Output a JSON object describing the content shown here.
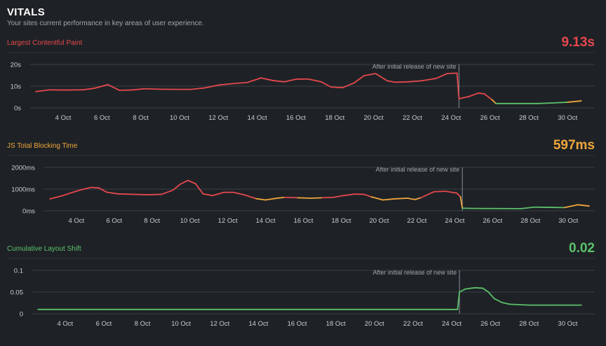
{
  "header": {
    "title": "VITALS",
    "subtitle": "Your sites current performance in key areas of user experience."
  },
  "colors": {
    "background": "#1e2226",
    "red": "#e5484d",
    "orange": "#f0a63c",
    "green": "#5cc16a",
    "grid": "#3a4046",
    "text": "#c9ced3"
  },
  "chart_data": [
    {
      "type": "line",
      "title": "Largest Contentful Paint",
      "current_value": "9.13s",
      "ylim": [
        0,
        20
      ],
      "y_ticks": [
        {
          "v": 20,
          "label": "20s"
        },
        {
          "v": 10,
          "label": "10s"
        },
        {
          "v": 0,
          "label": "0s"
        }
      ],
      "x_range": [
        2.3,
        31.4
      ],
      "x_ticks": [
        {
          "d": 4,
          "label": "4 Oct"
        },
        {
          "d": 6,
          "label": "6 Oct"
        },
        {
          "d": 8,
          "label": "8 Oct"
        },
        {
          "d": 10,
          "label": "10 Oct"
        },
        {
          "d": 12,
          "label": "12 Oct"
        },
        {
          "d": 14,
          "label": "14 Oct"
        },
        {
          "d": 16,
          "label": "16 Oct"
        },
        {
          "d": 18,
          "label": "18 Oct"
        },
        {
          "d": 20,
          "label": "20 Oct"
        },
        {
          "d": 22,
          "label": "22 Oct"
        },
        {
          "d": 24,
          "label": "24 Oct"
        },
        {
          "d": 26,
          "label": "26 Oct"
        },
        {
          "d": 28,
          "label": "28 Oct"
        },
        {
          "d": 30,
          "label": "30 Oct"
        }
      ],
      "thresholds": [
        2.5,
        4.0
      ],
      "marker": {
        "d": 24.4,
        "label": "After initial release of new site"
      },
      "x": [
        2.6,
        3.3,
        4.0,
        5.0,
        5.6,
        6.3,
        6.9,
        7.5,
        8.2,
        9.0,
        9.8,
        10.6,
        11.3,
        12.0,
        12.8,
        13.5,
        14.2,
        14.8,
        15.4,
        16.0,
        16.6,
        17.3,
        17.8,
        18.4,
        19.0,
        19.5,
        20.1,
        20.7,
        21.1,
        21.8,
        22.5,
        23.2,
        23.8,
        24.3,
        24.4,
        24.9,
        25.4,
        25.7,
        26.1,
        26.3,
        26.9,
        27.5,
        28.5,
        29.3,
        30.0,
        30.7
      ],
      "y": [
        7.5,
        8.3,
        8.2,
        8.3,
        9.0,
        10.7,
        8.1,
        8.2,
        8.8,
        8.6,
        8.5,
        8.5,
        9.2,
        10.5,
        11.2,
        11.7,
        13.8,
        12.6,
        12.0,
        13.2,
        13.3,
        12.0,
        9.6,
        9.3,
        11.5,
        14.8,
        15.8,
        12.5,
        11.8,
        12.0,
        12.5,
        13.5,
        15.8,
        16.0,
        4.2,
        5.2,
        6.8,
        6.5,
        3.8,
        2.0,
        2.0,
        2.0,
        2.0,
        2.3,
        2.6,
        3.2
      ]
    },
    {
      "type": "line",
      "title": "JS Total Blocking Time",
      "current_value": "597ms",
      "ylim": [
        0,
        2000
      ],
      "y_ticks": [
        {
          "v": 2000,
          "label": "2000ms"
        },
        {
          "v": 1000,
          "label": "1000ms"
        },
        {
          "v": 0,
          "label": "0ms"
        }
      ],
      "x_range": [
        2.3,
        31.4
      ],
      "x_ticks": [
        {
          "d": 4,
          "label": "4 Oct"
        },
        {
          "d": 6,
          "label": "6 Oct"
        },
        {
          "d": 8,
          "label": "8 Oct"
        },
        {
          "d": 10,
          "label": "10 Oct"
        },
        {
          "d": 12,
          "label": "12 Oct"
        },
        {
          "d": 14,
          "label": "14 Oct"
        },
        {
          "d": 16,
          "label": "16 Oct"
        },
        {
          "d": 18,
          "label": "18 Oct"
        },
        {
          "d": 20,
          "label": "20 Oct"
        },
        {
          "d": 22,
          "label": "22 Oct"
        },
        {
          "d": 24,
          "label": "24 Oct"
        },
        {
          "d": 26,
          "label": "26 Oct"
        },
        {
          "d": 28,
          "label": "28 Oct"
        },
        {
          "d": 30,
          "label": "30 Oct"
        }
      ],
      "thresholds": [
        200,
        600
      ],
      "marker": {
        "d": 24.4,
        "label": "After initial release of new site"
      },
      "x": [
        2.6,
        3.2,
        3.8,
        4.3,
        4.8,
        5.2,
        5.6,
        6.2,
        7.0,
        7.8,
        8.5,
        9.1,
        9.5,
        9.9,
        10.3,
        10.7,
        11.2,
        11.8,
        12.3,
        12.9,
        13.5,
        14.0,
        14.5,
        15.0,
        15.7,
        16.4,
        17.0,
        17.6,
        18.1,
        18.7,
        19.2,
        19.6,
        20.2,
        20.8,
        21.5,
        21.9,
        22.2,
        22.9,
        23.5,
        24.1,
        24.3,
        24.4,
        25.1,
        26.5,
        27.5,
        28.2,
        29.0,
        29.8,
        30.5,
        31.1
      ],
      "y": [
        550,
        680,
        850,
        980,
        1080,
        1050,
        860,
        780,
        760,
        740,
        760,
        950,
        1230,
        1400,
        1250,
        780,
        700,
        850,
        850,
        730,
        560,
        500,
        570,
        620,
        600,
        580,
        600,
        620,
        700,
        770,
        760,
        640,
        500,
        550,
        580,
        520,
        600,
        880,
        900,
        820,
        650,
        120,
        110,
        105,
        100,
        170,
        160,
        150,
        280,
        220
      ]
    },
    {
      "type": "line",
      "title": "Cumulative Layout Shift",
      "current_value": "0.02",
      "ylim": [
        0,
        0.1
      ],
      "y_ticks": [
        {
          "v": 0.1,
          "label": "0.1"
        },
        {
          "v": 0.05,
          "label": "0.05"
        },
        {
          "v": 0,
          "label": "0"
        }
      ],
      "x_range": [
        2.3,
        31.4
      ],
      "x_ticks": [
        {
          "d": 4,
          "label": "4 Oct"
        },
        {
          "d": 6,
          "label": "6 Oct"
        },
        {
          "d": 8,
          "label": "8 Oct"
        },
        {
          "d": 10,
          "label": "10 Oct"
        },
        {
          "d": 12,
          "label": "12 Oct"
        },
        {
          "d": 14,
          "label": "14 Oct"
        },
        {
          "d": 16,
          "label": "16 Oct"
        },
        {
          "d": 18,
          "label": "18 Oct"
        },
        {
          "d": 20,
          "label": "20 Oct"
        },
        {
          "d": 22,
          "label": "22 Oct"
        },
        {
          "d": 24,
          "label": "24 Oct"
        },
        {
          "d": 26,
          "label": "26 Oct"
        },
        {
          "d": 28,
          "label": "28 Oct"
        },
        {
          "d": 30,
          "label": "30 Oct"
        }
      ],
      "thresholds": [
        0.1,
        0.25
      ],
      "marker": {
        "d": 24.4,
        "label": "After initial release of new site"
      },
      "x": [
        2.6,
        6.0,
        10.0,
        14.0,
        18.0,
        22.0,
        24.0,
        24.3,
        24.4,
        24.7,
        25.2,
        25.6,
        25.9,
        26.2,
        26.6,
        27.0,
        28.0,
        29.5,
        30.7
      ],
      "y": [
        0.01,
        0.01,
        0.01,
        0.01,
        0.01,
        0.01,
        0.01,
        0.01,
        0.05,
        0.057,
        0.06,
        0.059,
        0.05,
        0.035,
        0.026,
        0.022,
        0.02,
        0.02,
        0.02
      ]
    }
  ]
}
